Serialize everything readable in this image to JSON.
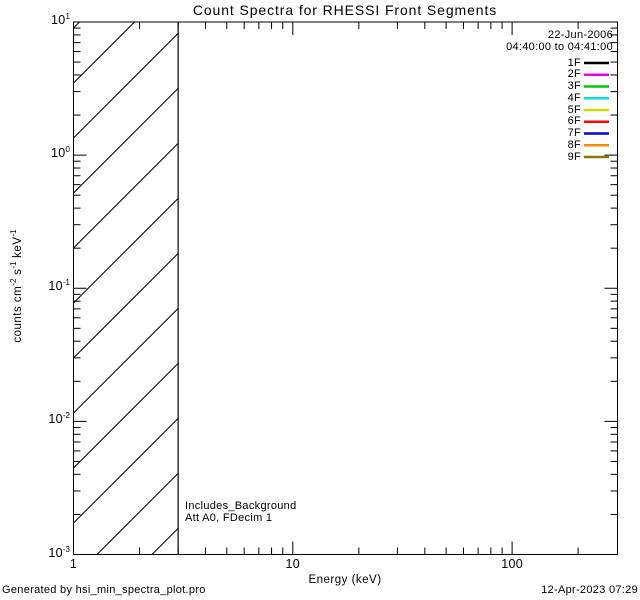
{
  "window": {
    "background": "#ffffff",
    "foreground": "#000000"
  },
  "title": "Count Spectra for RHESSI Front Segments",
  "legend": {
    "date": "22-Jun-2006",
    "time_range": "04:40:00 to 04:41:00",
    "entries": [
      {
        "label": "1F",
        "color": "#000000"
      },
      {
        "label": "2F",
        "color": "#ee00ee"
      },
      {
        "label": "3F",
        "color": "#00cc00"
      },
      {
        "label": "4F",
        "color": "#00e0e0"
      },
      {
        "label": "5F",
        "color": "#d6d600"
      },
      {
        "label": "6F",
        "color": "#ff0000"
      },
      {
        "label": "7F",
        "color": "#0000dd"
      },
      {
        "label": "8F",
        "color": "#ff8800"
      },
      {
        "label": "9F",
        "color": "#857a00"
      }
    ]
  },
  "annotations": {
    "line1": "Includes_Background",
    "line2": "Att A0, FDecim 1"
  },
  "footer": {
    "left": "Generated by hsi_min_spectra_plot.pro",
    "right": "12-Apr-2023 07:29"
  },
  "chart_data": {
    "type": "line",
    "title": "Count Spectra for RHESSI Front Segments",
    "xlabel": "Energy (keV)",
    "ylabel": "counts cm^-2 s^-1 keV^-1",
    "x_scale": "log",
    "y_scale": "log",
    "xlim": [
      1,
      300
    ],
    "ylim": [
      0.001,
      10
    ],
    "grid": false,
    "legend_position": "top-right",
    "x_major_ticks": [
      {
        "value": 1,
        "label": "1"
      },
      {
        "value": 10,
        "label": "10"
      },
      {
        "value": 100,
        "label": "100"
      }
    ],
    "x_minor_ticks": [
      2,
      3,
      4,
      5,
      6,
      7,
      8,
      9,
      20,
      30,
      40,
      50,
      60,
      70,
      80,
      90,
      200
    ],
    "y_major_ticks": [
      {
        "value": 10,
        "base": "10",
        "exp": "1"
      },
      {
        "value": 1,
        "base": "10",
        "exp": "0"
      },
      {
        "value": 0.1,
        "base": "10",
        "exp": "-1"
      },
      {
        "value": 0.01,
        "base": "10",
        "exp": "-2"
      },
      {
        "value": 0.001,
        "base": "10",
        "exp": "-3"
      }
    ],
    "y_minor_tick_multipliers": [
      2,
      3,
      4,
      5,
      6,
      7,
      8,
      9
    ],
    "ylabel_parts": [
      {
        "t": "counts cm"
      },
      {
        "t": "-2",
        "sup": true
      },
      {
        "t": " s"
      },
      {
        "t": "-1",
        "sup": true
      },
      {
        "t": " keV"
      },
      {
        "t": "-1",
        "sup": true
      }
    ],
    "series": [
      {
        "name": "1F",
        "color": "#000000",
        "values": []
      },
      {
        "name": "2F",
        "color": "#ee00ee",
        "values": []
      },
      {
        "name": "3F",
        "color": "#00cc00",
        "values": []
      },
      {
        "name": "4F",
        "color": "#00e0e0",
        "values": []
      },
      {
        "name": "5F",
        "color": "#d6d600",
        "values": []
      },
      {
        "name": "6F",
        "color": "#ff0000",
        "values": []
      },
      {
        "name": "7F",
        "color": "#0000dd",
        "values": []
      },
      {
        "name": "8F",
        "color": "#ff8800",
        "values": []
      },
      {
        "name": "9F",
        "color": "#857a00",
        "values": []
      }
    ],
    "no_data_curves_visible": true,
    "hatched_region": {
      "x_start": 1,
      "x_end": 3,
      "hatch_angle_deg": 45,
      "note": "diagonal hatched band spanning full y-range below 3 keV, bounded by vertical line at 3 keV"
    }
  }
}
